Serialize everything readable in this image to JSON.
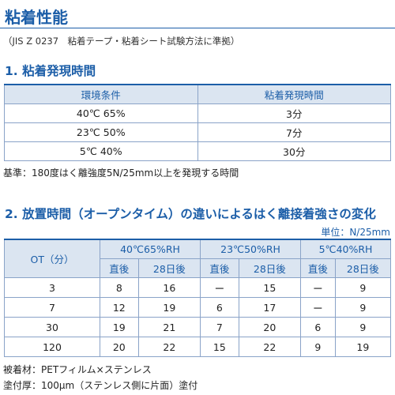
{
  "header": {
    "title": "粘着性能",
    "subtitle": "（JIS Z 0237　粘着テープ・粘着シート試験方法に準拠）"
  },
  "section1": {
    "heading": "1. 粘着発現時間",
    "table": {
      "columns": [
        "環境条件",
        "粘着発現時間"
      ],
      "rows": [
        [
          "40℃ 65%",
          "3分"
        ],
        [
          "23℃ 50%",
          "7分"
        ],
        [
          "5℃ 40%",
          "30分"
        ]
      ]
    },
    "note": "基準：180度はく離強度5N/25mm以上を発現する時間"
  },
  "section2": {
    "heading": "2. 放置時間（オープンタイム）の違いによるはく離接着強さの変化",
    "unit": "単位：N/25mm",
    "table": {
      "corner": "OT（分）",
      "groups": [
        "40℃65%RH",
        "23℃50%RH",
        "5℃40%RH"
      ],
      "subheaders": [
        "直後",
        "28日後",
        "直後",
        "28日後",
        "直後",
        "28日後"
      ],
      "rows": [
        [
          "3",
          "8",
          "16",
          "ー",
          "15",
          "ー",
          "9"
        ],
        [
          "7",
          "12",
          "19",
          "6",
          "17",
          "ー",
          "9"
        ],
        [
          "30",
          "19",
          "21",
          "7",
          "20",
          "6",
          "9"
        ],
        [
          "120",
          "20",
          "22",
          "15",
          "22",
          "9",
          "19"
        ]
      ]
    }
  },
  "footer": {
    "lines": [
      "被着材：PETフィルム×ステンレス",
      "塗付厚：100μm（ステンレス側に片面）塗付"
    ]
  }
}
